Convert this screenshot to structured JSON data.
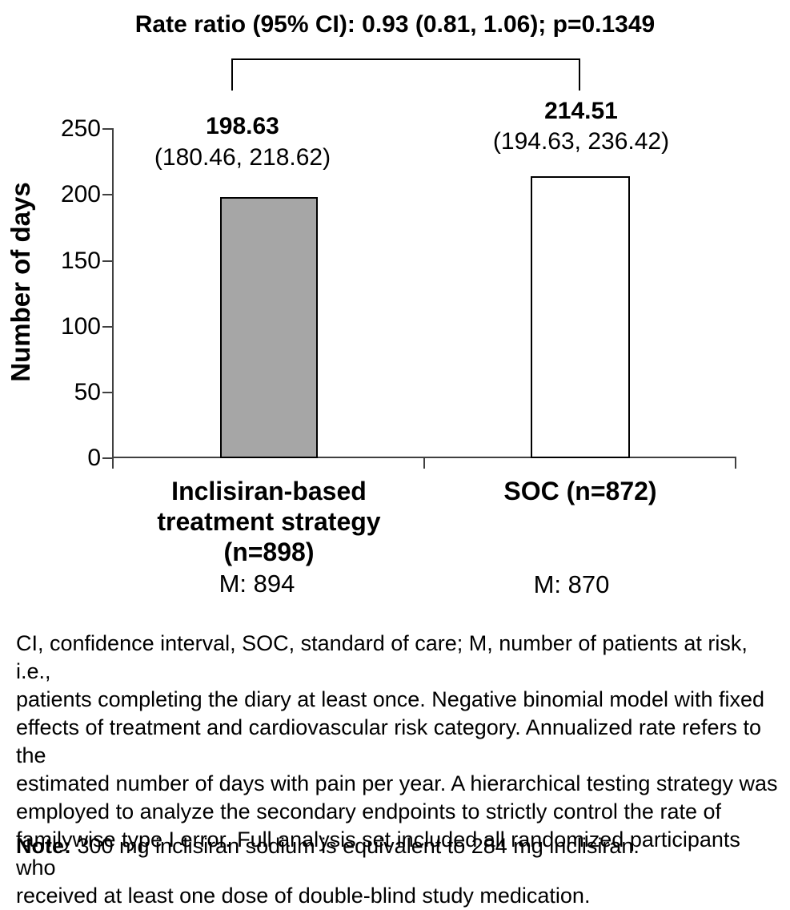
{
  "title": "Rate ratio (95% CI): 0.93 (0.81, 1.06); p=0.1349",
  "chart_data": {
    "type": "bar",
    "title": "Rate ratio (95% CI): 0.93 (0.81, 1.06); p=0.1349",
    "ylabel": "Number of days",
    "ylim": [
      0,
      250
    ],
    "ytick_values": [
      250,
      200,
      150,
      100,
      50,
      0
    ],
    "grid": false,
    "legend": "none",
    "categories": [
      "Inclisiran-based treatment strategy (n=898)",
      "SOC (n=872)"
    ],
    "values": [
      198.63,
      214.51
    ],
    "ci_95": [
      [
        180.46,
        218.62
      ],
      [
        194.63,
        236.42
      ]
    ],
    "bar_colors": [
      "#a6a6a6",
      "#ffffff"
    ],
    "m_at_risk": [
      894,
      870
    ],
    "annotation": "Rate ratio (95% CI): 0.93 (0.81, 1.06); p=0.1349"
  },
  "yticks": {
    "t0": "250",
    "t1": "200",
    "t2": "150",
    "t3": "100",
    "t4": "50",
    "t5": "0"
  },
  "labels": {
    "ylabel": "Number of days",
    "bar1_value": "198.63",
    "bar1_ci": "(180.46, 218.62)",
    "bar2_value": "214.51",
    "bar2_ci": "(194.63, 236.42)",
    "cat1": "Inclisiran-based\ntreatment strategy\n(n=898)",
    "cat2": "SOC (n=872)",
    "m1": "M: 894",
    "m2": "M: 870"
  },
  "footnote": {
    "body": "CI, confidence interval, SOC, standard of care; M, number of patients at risk, i.e.,\npatients completing the diary at least once. Negative binomial model with fixed\neffects of treatment and cardiovascular risk category. Annualized rate refers to the\nestimated number of days with pain per year. A hierarchical testing strategy was\nemployed to analyze the secondary endpoints to strictly control the rate of\nfamilywise type I error. Full analysis set included all randomized participants who\nreceived at least one dose of double-blind study medication.",
    "note_label": "Note:",
    "note_text": " 300 mg inclisiran sodium is equivalent to 284 mg inclisiran."
  }
}
